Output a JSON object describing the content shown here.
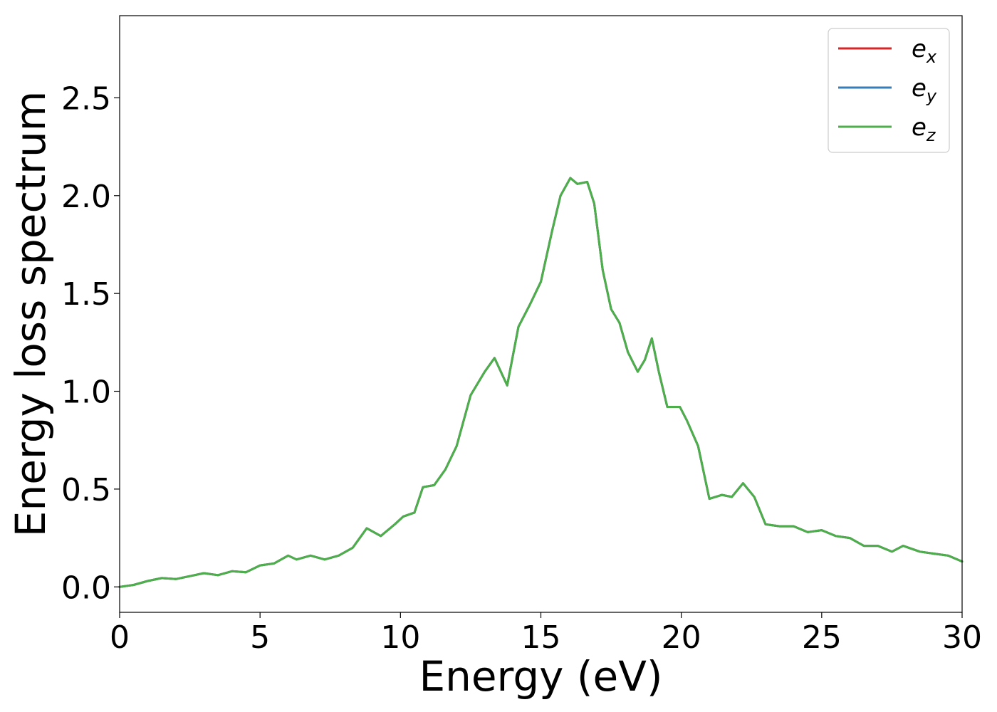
{
  "chart_data": {
    "type": "line",
    "title": "",
    "xlabel": "Energy (eV)",
    "ylabel": "Energy loss spectrum",
    "xlim": [
      0,
      30
    ],
    "ylim": [
      -0.13,
      2.92
    ],
    "xticks": [
      0,
      5,
      10,
      15,
      20,
      25,
      30
    ],
    "xtick_labels": [
      "0",
      "5",
      "10",
      "15",
      "20",
      "25",
      "30"
    ],
    "yticks": [
      0.0,
      0.5,
      1.0,
      1.5,
      2.0,
      2.5
    ],
    "ytick_labels": [
      "0.0",
      "0.5",
      "1.0",
      "1.5",
      "2.0",
      "2.5"
    ],
    "grid": false,
    "legend_position": "top-right",
    "x": [
      0,
      0.5,
      1.0,
      1.5,
      2.0,
      2.5,
      3.0,
      3.5,
      4.0,
      4.5,
      5.0,
      5.5,
      6.0,
      6.3,
      6.8,
      7.3,
      7.8,
      8.3,
      8.8,
      9.3,
      9.8,
      10.1,
      10.5,
      10.8,
      11.2,
      11.6,
      12.0,
      12.5,
      13.0,
      13.35,
      13.8,
      14.2,
      14.6,
      15.0,
      15.4,
      15.7,
      16.05,
      16.3,
      16.65,
      16.9,
      17.2,
      17.5,
      17.8,
      18.1,
      18.45,
      18.7,
      18.95,
      19.2,
      19.5,
      19.95,
      20.2,
      20.6,
      21.0,
      21.45,
      21.8,
      22.2,
      22.6,
      23.0,
      23.5,
      24.0,
      24.5,
      25.0,
      25.5,
      26.0,
      26.5,
      27.0,
      27.5,
      27.9,
      28.5,
      29.0,
      29.5,
      30.0
    ],
    "series": [
      {
        "name": "e_x",
        "color": "#d62728",
        "values": [
          0.0,
          0.01,
          0.03,
          0.045,
          0.04,
          0.055,
          0.07,
          0.06,
          0.08,
          0.075,
          0.11,
          0.12,
          0.16,
          0.14,
          0.16,
          0.14,
          0.16,
          0.2,
          0.3,
          0.26,
          0.32,
          0.36,
          0.38,
          0.51,
          0.52,
          0.6,
          0.72,
          0.98,
          1.1,
          1.17,
          1.03,
          1.33,
          1.44,
          1.56,
          1.82,
          2.0,
          2.09,
          2.06,
          2.07,
          1.96,
          1.62,
          1.42,
          1.35,
          1.2,
          1.1,
          1.16,
          1.27,
          1.1,
          0.92,
          0.92,
          0.85,
          0.72,
          0.45,
          0.47,
          0.46,
          0.53,
          0.46,
          0.32,
          0.31,
          0.31,
          0.28,
          0.29,
          0.26,
          0.25,
          0.21,
          0.21,
          0.18,
          0.21,
          0.18,
          0.17,
          0.16,
          0.13
        ]
      },
      {
        "name": "e_y",
        "color": "#377eb8",
        "values": [
          0.0,
          0.01,
          0.03,
          0.045,
          0.04,
          0.055,
          0.07,
          0.06,
          0.08,
          0.075,
          0.11,
          0.12,
          0.16,
          0.14,
          0.16,
          0.14,
          0.16,
          0.2,
          0.3,
          0.26,
          0.32,
          0.36,
          0.38,
          0.51,
          0.52,
          0.6,
          0.72,
          0.98,
          1.1,
          1.17,
          1.03,
          1.33,
          1.44,
          1.56,
          1.82,
          2.0,
          2.09,
          2.06,
          2.07,
          1.96,
          1.62,
          1.42,
          1.35,
          1.2,
          1.1,
          1.16,
          1.27,
          1.1,
          0.92,
          0.92,
          0.85,
          0.72,
          0.45,
          0.47,
          0.46,
          0.53,
          0.46,
          0.32,
          0.31,
          0.31,
          0.28,
          0.29,
          0.26,
          0.25,
          0.21,
          0.21,
          0.18,
          0.21,
          0.18,
          0.17,
          0.16,
          0.13
        ]
      },
      {
        "name": "e_z",
        "color": "#4daf4a",
        "values": [
          0.0,
          0.01,
          0.03,
          0.045,
          0.04,
          0.055,
          0.07,
          0.06,
          0.08,
          0.075,
          0.11,
          0.12,
          0.16,
          0.14,
          0.16,
          0.14,
          0.16,
          0.2,
          0.3,
          0.26,
          0.32,
          0.36,
          0.38,
          0.51,
          0.52,
          0.6,
          0.72,
          0.98,
          1.1,
          1.17,
          1.03,
          1.33,
          1.44,
          1.56,
          1.82,
          2.0,
          2.09,
          2.06,
          2.07,
          1.96,
          1.62,
          1.42,
          1.35,
          1.2,
          1.1,
          1.16,
          1.27,
          1.1,
          0.92,
          0.92,
          0.85,
          0.72,
          0.45,
          0.47,
          0.46,
          0.53,
          0.46,
          0.32,
          0.31,
          0.31,
          0.28,
          0.29,
          0.26,
          0.25,
          0.21,
          0.21,
          0.18,
          0.21,
          0.18,
          0.17,
          0.16,
          0.13
        ]
      }
    ],
    "legend": [
      {
        "base": "e",
        "sub": "x"
      },
      {
        "base": "e",
        "sub": "y"
      },
      {
        "base": "e",
        "sub": "z"
      }
    ]
  }
}
